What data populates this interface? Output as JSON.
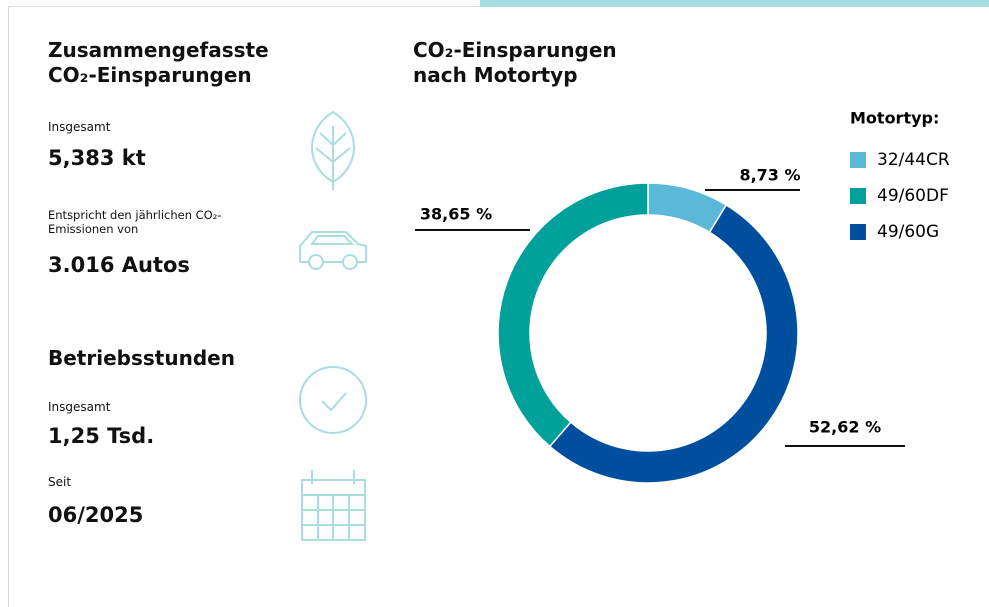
{
  "summary": {
    "title": "Zusammengefasste CO₂-Einsparungen",
    "total_label": "Insgesamt",
    "total_value": "5,383 kt",
    "equivalent_label": "Entspricht den jährlichen CO₂-Emissionen von",
    "equivalent_value": "3.016 Autos"
  },
  "hours": {
    "title": "Betriebsstunden",
    "total_label": "Insgesamt",
    "total_value": "1,25 Tsd.",
    "since_label": "Seit",
    "since_value": "06/2025"
  },
  "chart_data": {
    "type": "pie",
    "title": "CO₂-Einsparungen nach Motortyp",
    "legend_title": "Motortyp:",
    "categories": [
      "32/44CR",
      "49/60DF",
      "49/60G"
    ],
    "values": [
      8.73,
      38.65,
      52.62
    ],
    "value_labels": [
      "8,73 %",
      "38,65 %",
      "52,62 %"
    ],
    "colors": [
      "#5bb8d8",
      "#00a19a",
      "#004f9f"
    ],
    "donut": true
  }
}
